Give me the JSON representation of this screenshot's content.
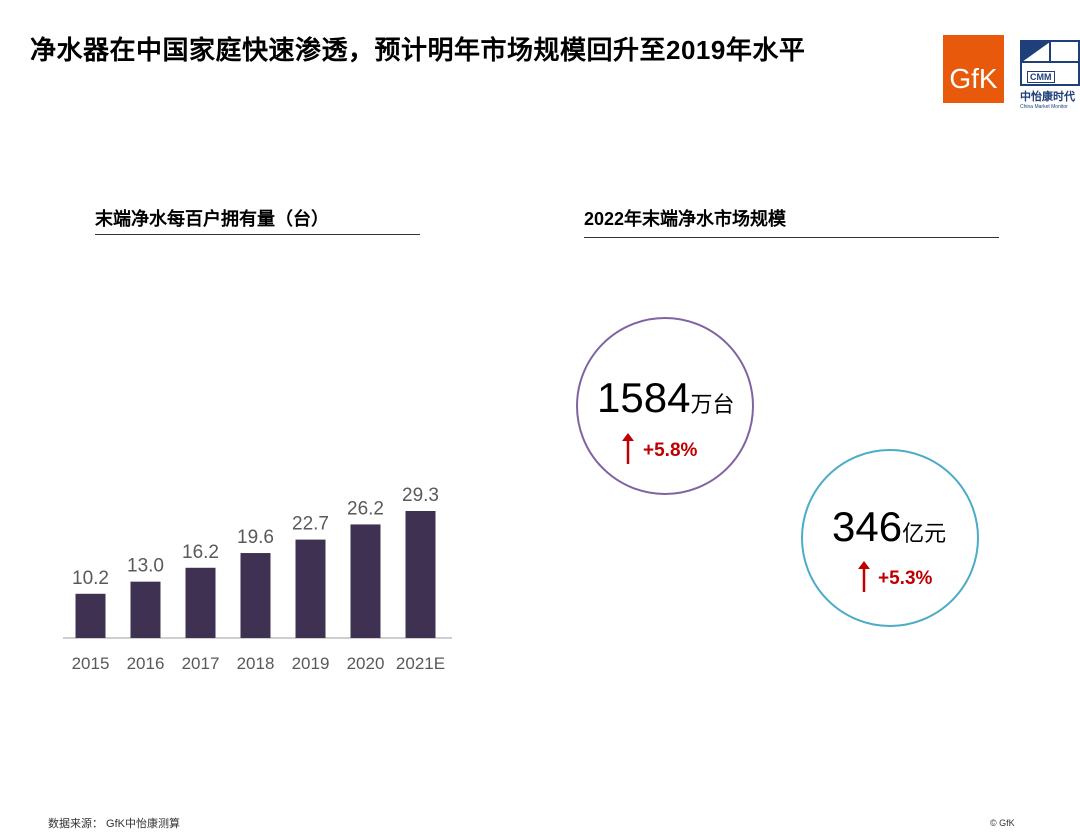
{
  "header": {
    "title": "净水器在中国家庭快速渗透，预计明年市场规模回升至2019年水平",
    "logo_gfk_text": "GfK",
    "logo_cmm_text": "CMM",
    "logo_cmm_name": "中怡康时代",
    "logo_cmm_sub": "China Market Monitor"
  },
  "left_section": {
    "title": "末端净水每百户拥有量（台）"
  },
  "right_section": {
    "title": "2022年末端净水市场规模",
    "units_metric": {
      "value": "1584",
      "unit": "万台",
      "growth": "+5.8%",
      "color": "#8064A2"
    },
    "revenue_metric": {
      "value": "346",
      "unit": "亿元",
      "growth": "+5.3%",
      "color": "#4BACC6"
    },
    "arrow_color": "#C00000"
  },
  "chart_data": {
    "type": "bar",
    "categories": [
      "2015",
      "2016",
      "2017",
      "2018",
      "2019",
      "2020",
      "2021E"
    ],
    "values": [
      10.2,
      13.0,
      16.2,
      19.6,
      22.7,
      26.2,
      29.3
    ],
    "value_labels": [
      "10.2",
      "13.0",
      "16.2",
      "19.6",
      "22.7",
      "26.2",
      "29.3"
    ],
    "title": "末端净水每百户拥有量（台）",
    "xlabel": "",
    "ylabel": "",
    "ylim": [
      0,
      29.3
    ],
    "grid": false,
    "bar_color": "#3F3151",
    "label_color": "#595959"
  },
  "footer": {
    "source": "数据来源： GfK中怡康测算",
    "copyright": "© GfK"
  }
}
